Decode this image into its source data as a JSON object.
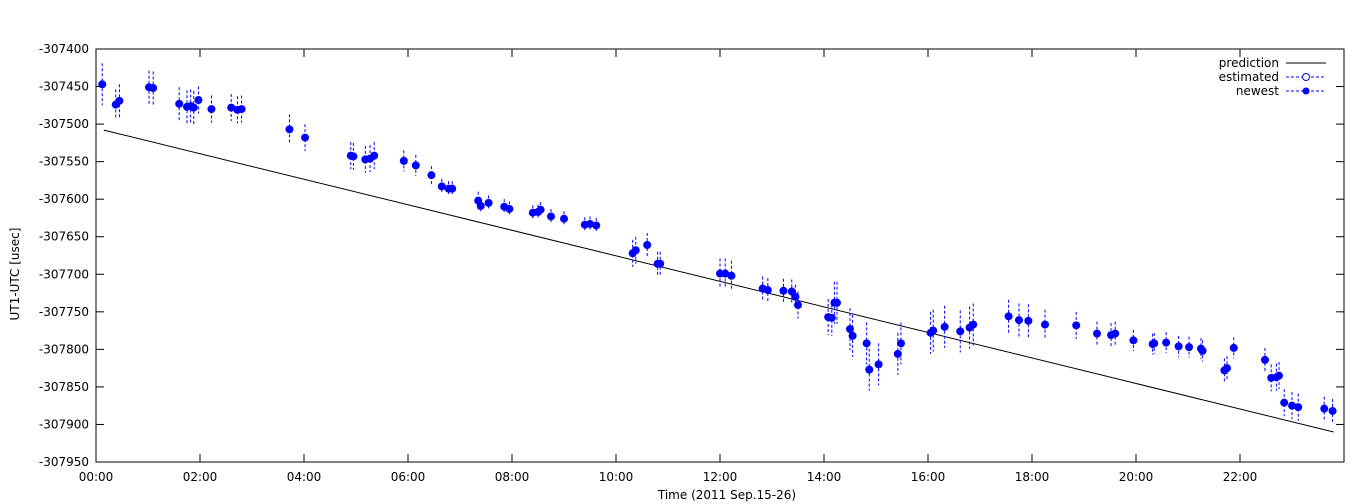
{
  "chart_data": {
    "type": "scatter",
    "xlabel": "Time (2011 Sep.15-26)",
    "ylabel": "UT1-UTC [usec]",
    "xlim": [
      0,
      24
    ],
    "ylim": [
      -307950,
      -307400
    ],
    "x_ticks": [
      0,
      2,
      4,
      6,
      8,
      10,
      12,
      14,
      16,
      18,
      20,
      22
    ],
    "x_tick_labels": [
      "00:00",
      "02:00",
      "04:00",
      "06:00",
      "08:00",
      "10:00",
      "12:00",
      "14:00",
      "16:00",
      "18:00",
      "20:00",
      "22:00"
    ],
    "y_ticks": [
      -307400,
      -307450,
      -307500,
      -307550,
      -307600,
      -307650,
      -307700,
      -307750,
      -307800,
      -307850,
      -307900,
      -307950
    ],
    "y_tick_labels": [
      "-307400",
      "-307450",
      "-307500",
      "-307550",
      "-307600",
      "-307650",
      "-307700",
      "-307750",
      "-307800",
      "-307850",
      "-307900",
      "-307950"
    ],
    "grid": false,
    "legend_position": "top-right",
    "colors": {
      "prediction": "#000000",
      "points": "#0000ff"
    },
    "series": [
      {
        "name": "prediction",
        "style": "line",
        "x": [
          0.15,
          23.8
        ],
        "y": [
          -307508,
          -307910
        ]
      },
      {
        "name": "estimated",
        "style": "open-circle-errorbar",
        "x": [],
        "y": []
      },
      {
        "name": "newest",
        "style": "filled-circle-errorbar",
        "points": [
          [
            0.12,
            -307447,
            28
          ],
          [
            0.38,
            -307474,
            20
          ],
          [
            0.45,
            -307469,
            22
          ],
          [
            1.02,
            -307451,
            22
          ],
          [
            1.1,
            -307452,
            22
          ],
          [
            1.6,
            -307473,
            22
          ],
          [
            1.75,
            -307477,
            22
          ],
          [
            1.82,
            -307476,
            22
          ],
          [
            1.88,
            -307478,
            22
          ],
          [
            1.97,
            -307468,
            18
          ],
          [
            2.22,
            -307480,
            18
          ],
          [
            2.6,
            -307478,
            18
          ],
          [
            2.72,
            -307481,
            18
          ],
          [
            2.8,
            -307480,
            18
          ],
          [
            3.72,
            -307507,
            20
          ],
          [
            4.02,
            -307518,
            18
          ],
          [
            4.9,
            -307542,
            18
          ],
          [
            4.95,
            -307543,
            18
          ],
          [
            5.18,
            -307547,
            18
          ],
          [
            5.27,
            -307546,
            18
          ],
          [
            5.35,
            -307542,
            18
          ],
          [
            5.92,
            -307549,
            14
          ],
          [
            6.15,
            -307555,
            14
          ],
          [
            6.45,
            -307568,
            12
          ],
          [
            6.65,
            -307583,
            10
          ],
          [
            6.78,
            -307586,
            10
          ],
          [
            6.85,
            -307586,
            10
          ],
          [
            7.35,
            -307602,
            12
          ],
          [
            7.4,
            -307609,
            10
          ],
          [
            7.55,
            -307605,
            10
          ],
          [
            7.85,
            -307610,
            10
          ],
          [
            7.95,
            -307613,
            10
          ],
          [
            8.4,
            -307618,
            10
          ],
          [
            8.5,
            -307617,
            10
          ],
          [
            8.55,
            -307614,
            10
          ],
          [
            8.75,
            -307623,
            10
          ],
          [
            9.0,
            -307626,
            10
          ],
          [
            9.4,
            -307634,
            10
          ],
          [
            9.5,
            -307633,
            10
          ],
          [
            9.62,
            -307635,
            10
          ],
          [
            10.32,
            -307672,
            18
          ],
          [
            10.38,
            -307668,
            18
          ],
          [
            10.6,
            -307661,
            16
          ],
          [
            10.8,
            -307686,
            16
          ],
          [
            10.85,
            -307686,
            16
          ],
          [
            12.0,
            -307699,
            20
          ],
          [
            12.1,
            -307699,
            20
          ],
          [
            12.22,
            -307702,
            20
          ],
          [
            12.82,
            -307719,
            16
          ],
          [
            12.92,
            -307721,
            16
          ],
          [
            13.22,
            -307722,
            16
          ],
          [
            13.38,
            -307723,
            16
          ],
          [
            13.45,
            -307730,
            16
          ],
          [
            13.5,
            -307741,
            18
          ],
          [
            14.08,
            -307757,
            24
          ],
          [
            14.15,
            -307758,
            24
          ],
          [
            14.2,
            -307738,
            28
          ],
          [
            14.25,
            -307738,
            28
          ],
          [
            14.5,
            -307773,
            28
          ],
          [
            14.55,
            -307782,
            28
          ],
          [
            14.82,
            -307792,
            28
          ],
          [
            14.87,
            -307827,
            28
          ],
          [
            15.05,
            -307820,
            28
          ],
          [
            15.42,
            -307806,
            28
          ],
          [
            15.48,
            -307792,
            28
          ],
          [
            16.05,
            -307778,
            28
          ],
          [
            16.1,
            -307775,
            28
          ],
          [
            16.32,
            -307770,
            28
          ],
          [
            16.62,
            -307776,
            28
          ],
          [
            16.8,
            -307771,
            28
          ],
          [
            16.87,
            -307767,
            28
          ],
          [
            17.55,
            -307756,
            22
          ],
          [
            17.75,
            -307761,
            22
          ],
          [
            17.93,
            -307762,
            22
          ],
          [
            18.25,
            -307767,
            20
          ],
          [
            18.85,
            -307768,
            18
          ],
          [
            19.25,
            -307779,
            16
          ],
          [
            19.52,
            -307781,
            16
          ],
          [
            19.6,
            -307779,
            16
          ],
          [
            19.95,
            -307788,
            14
          ],
          [
            20.32,
            -307793,
            14
          ],
          [
            20.35,
            -307792,
            14
          ],
          [
            20.58,
            -307791,
            14
          ],
          [
            20.82,
            -307796,
            14
          ],
          [
            21.02,
            -307797,
            14
          ],
          [
            21.25,
            -307799,
            14
          ],
          [
            21.28,
            -307802,
            14
          ],
          [
            21.7,
            -307828,
            16
          ],
          [
            21.75,
            -307825,
            16
          ],
          [
            21.88,
            -307798,
            14
          ],
          [
            22.48,
            -307814,
            16
          ],
          [
            22.6,
            -307838,
            18
          ],
          [
            22.7,
            -307837,
            18
          ],
          [
            22.75,
            -307835,
            18
          ],
          [
            22.85,
            -307871,
            18
          ],
          [
            23.0,
            -307875,
            18
          ],
          [
            23.12,
            -307877,
            18
          ],
          [
            23.62,
            -307879,
            16
          ],
          [
            23.78,
            -307882,
            16
          ]
        ]
      }
    ]
  }
}
